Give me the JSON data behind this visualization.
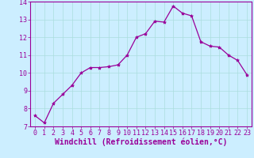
{
  "x": [
    0,
    1,
    2,
    3,
    4,
    5,
    6,
    7,
    8,
    9,
    10,
    11,
    12,
    13,
    14,
    15,
    16,
    17,
    18,
    19,
    20,
    21,
    22,
    23
  ],
  "y": [
    7.6,
    7.2,
    8.3,
    8.8,
    9.3,
    10.0,
    10.3,
    10.3,
    10.35,
    10.45,
    11.0,
    12.0,
    12.2,
    12.9,
    12.85,
    13.75,
    13.35,
    13.2,
    11.75,
    11.5,
    11.45,
    11.0,
    10.7,
    9.9
  ],
  "ylim": [
    7,
    14
  ],
  "xlim_min": -0.5,
  "xlim_max": 23.5,
  "yticks": [
    7,
    8,
    9,
    10,
    11,
    12,
    13,
    14
  ],
  "xticks": [
    0,
    1,
    2,
    3,
    4,
    5,
    6,
    7,
    8,
    9,
    10,
    11,
    12,
    13,
    14,
    15,
    16,
    17,
    18,
    19,
    20,
    21,
    22,
    23
  ],
  "xlabel": "Windchill (Refroidissement éolien,°C)",
  "line_color": "#990099",
  "marker": "*",
  "marker_size": 3,
  "bg_color": "#cceeff",
  "grid_color": "#aadddd",
  "tick_color": "#990099",
  "label_color": "#990099",
  "spine_color": "#990099",
  "tick_font_size": 6,
  "xlabel_font_size": 7
}
